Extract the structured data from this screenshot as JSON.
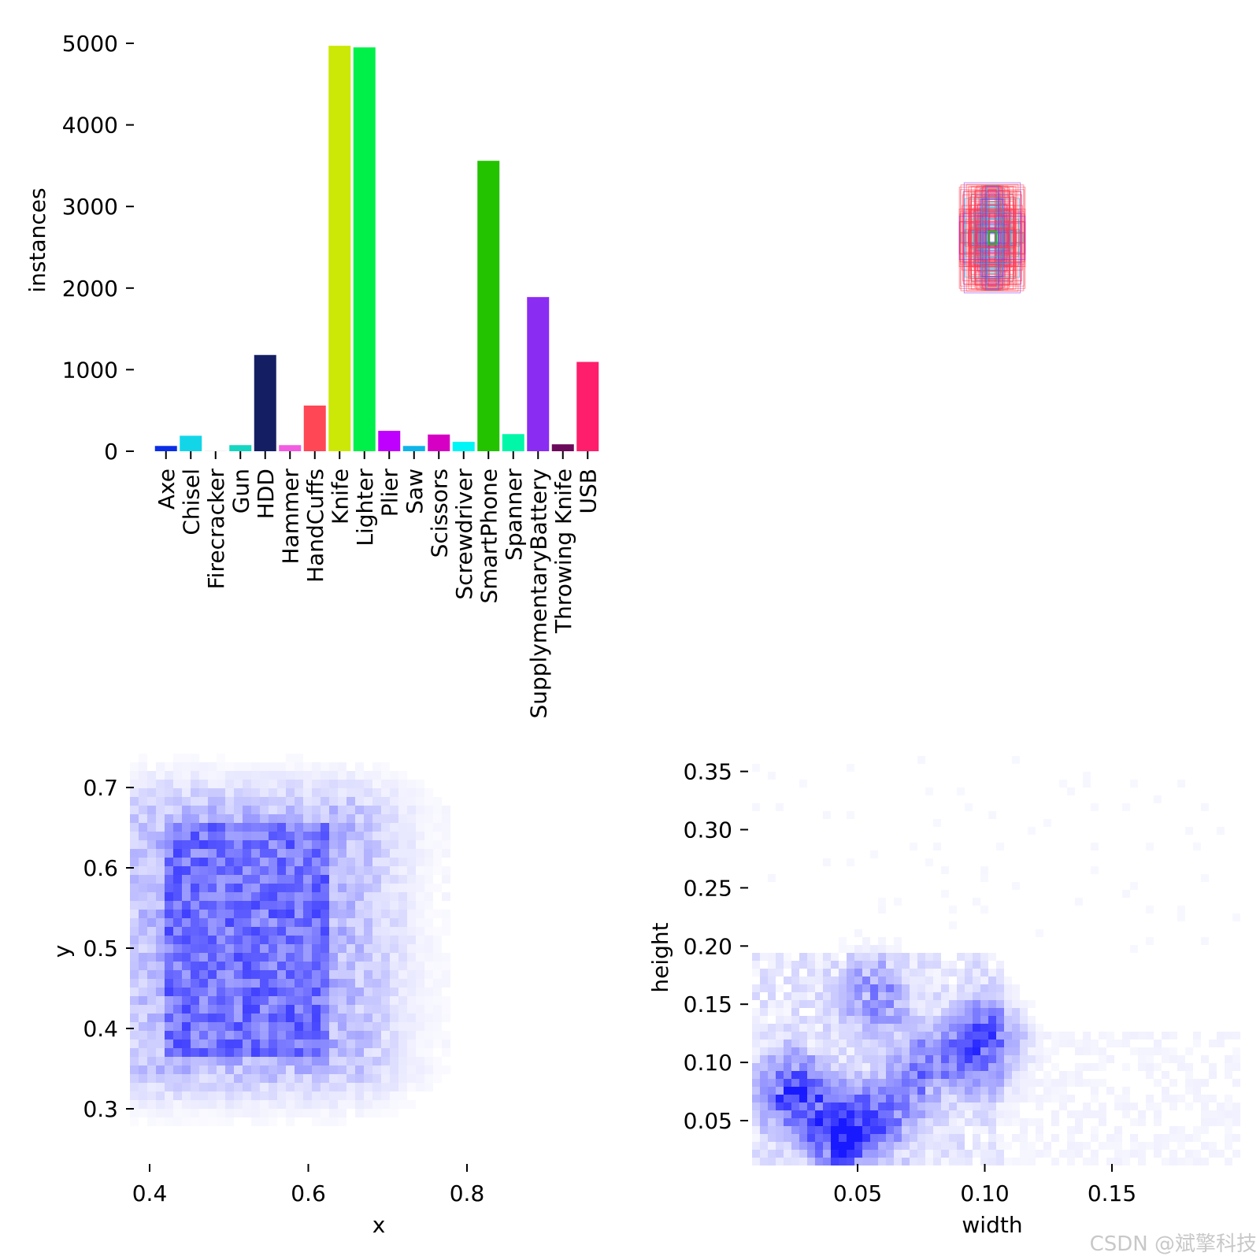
{
  "chart_data": [
    {
      "type": "bar",
      "ylabel": "instances",
      "ylim": [
        0,
        5000
      ],
      "yticks": [
        "0",
        "1000",
        "2000",
        "3000",
        "4000",
        "5000"
      ],
      "categories": [
        "Axe",
        "Chisel",
        "Firecracker",
        "Gun",
        "HDD",
        "Hammer",
        "HandCuffs",
        "Knife",
        "Lighter",
        "Plier",
        "Saw",
        "Scissors",
        "Screwdriver",
        "SmartPhone",
        "Spanner",
        "SupplymentaryBattery",
        "Throwing Knife",
        "USB"
      ],
      "values": [
        65,
        190,
        5,
        75,
        1180,
        75,
        560,
        4970,
        4950,
        250,
        65,
        205,
        115,
        3560,
        210,
        1890,
        85,
        1095
      ],
      "colors": [
        "#0b2ee6",
        "#12d6e8",
        "#f2f2f2",
        "#15d6c0",
        "#141f63",
        "#f25ce0",
        "#ff4756",
        "#cbe806",
        "#00f04a",
        "#c000ff",
        "#0fb4e8",
        "#d600c4",
        "#00f6f6",
        "#23c300",
        "#00f7a8",
        "#8a2cf2",
        "#6b0a5a",
        "#ff1e6b"
      ]
    },
    {
      "type": "boxes",
      "description": "overlaid bounding boxes centered in panel",
      "colors": [
        "#00d5e6",
        "#ff3b4e",
        "#8a2cf2",
        "#23c300"
      ]
    },
    {
      "type": "heatmap",
      "xlabel": "x",
      "ylabel": "y",
      "xlim": [
        0.38,
        0.98
      ],
      "ylim": [
        0.22,
        0.74
      ],
      "xticks": [
        "0.4",
        "0.6",
        "0.8"
      ],
      "yticks": [
        "0.3",
        "0.4",
        "0.5",
        "0.6",
        "0.7"
      ],
      "center": [
        0.5,
        0.48
      ],
      "color": "#0000ff"
    },
    {
      "type": "heatmap",
      "xlabel": "width",
      "ylabel": "height",
      "xlim": [
        0.01,
        0.2
      ],
      "ylim": [
        0.01,
        0.36
      ],
      "xticks": [
        "0.05",
        "0.10",
        "0.15"
      ],
      "yticks": [
        "0.05",
        "0.10",
        "0.15",
        "0.20",
        "0.25",
        "0.30",
        "0.35"
      ],
      "color": "#0000ff"
    }
  ],
  "watermark": "CSDN @斌擎科技"
}
